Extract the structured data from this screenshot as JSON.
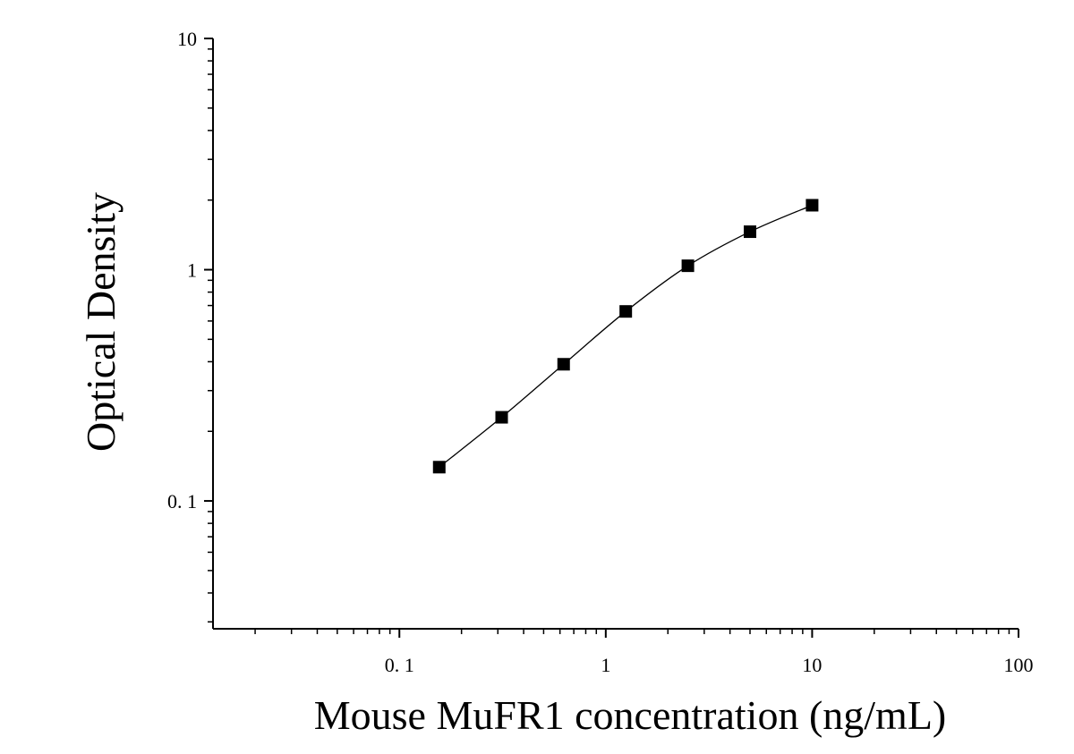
{
  "chart_data": {
    "type": "scatter",
    "title": "",
    "xlabel": "Mouse MuFR1 concentration (ng/mL)",
    "ylabel": "Optical Density",
    "x_scale": "log",
    "y_scale": "log",
    "xlim": [
      0.0125,
      100
    ],
    "ylim": [
      0.028,
      10
    ],
    "x_ticks": [
      {
        "value": 0.1,
        "label": "0. 1"
      },
      {
        "value": 1,
        "label": "1"
      },
      {
        "value": 10,
        "label": "10"
      },
      {
        "value": 100,
        "label": "100"
      }
    ],
    "y_ticks": [
      {
        "value": 0.1,
        "label": "0. 1"
      },
      {
        "value": 1,
        "label": "1"
      },
      {
        "value": 10,
        "label": "10"
      }
    ],
    "grid": false,
    "legend": "none",
    "series": [
      {
        "marker": "square",
        "color": "#000000",
        "fit_line": "smooth",
        "x": [
          0.156,
          0.313,
          0.625,
          1.25,
          2.5,
          5,
          10
        ],
        "y": [
          0.14,
          0.23,
          0.39,
          0.66,
          1.04,
          1.46,
          1.9
        ]
      }
    ]
  }
}
